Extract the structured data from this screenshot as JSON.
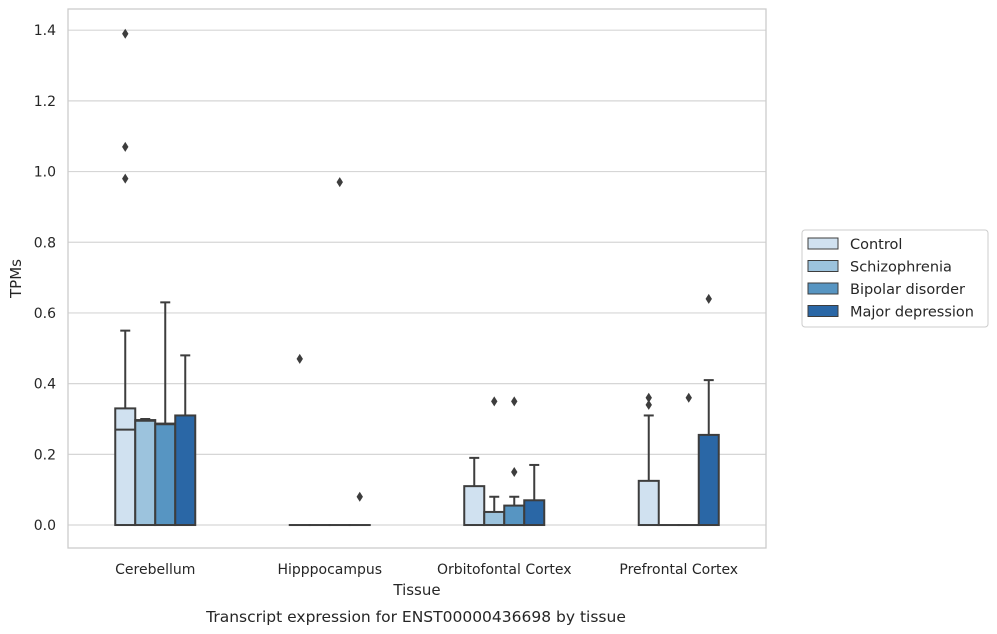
{
  "caption": "Transcript expression for ENST00000436698 by tissue",
  "chart_data": {
    "type": "box",
    "xlabel": "Tissue",
    "ylabel": "TPMs",
    "ylim": [
      -0.065,
      1.46
    ],
    "yticks": [
      0.0,
      0.2,
      0.4,
      0.6,
      0.8,
      1.0,
      1.2,
      1.4
    ],
    "ytick_labels": [
      "0.0",
      "0.2",
      "0.4",
      "0.6",
      "0.8",
      "1.0",
      "1.2",
      "1.4"
    ],
    "grid": "horizontal",
    "legend_position": "right",
    "categories": [
      "Cerebellum",
      "Hipppocampus",
      "Orbitofontal Cortex",
      "Prefrontal Cortex"
    ],
    "series": [
      {
        "name": "Control",
        "color": "#d0e1f0",
        "boxes": [
          {
            "q1": 0.0,
            "median": 0.27,
            "q3": 0.33,
            "whislo": 0.0,
            "whishi": 0.55,
            "fliers": [
              0.98,
              1.07,
              1.39
            ]
          },
          {
            "q1": 0.0,
            "median": 0.0,
            "q3": 0.0,
            "whislo": 0.0,
            "whishi": 0.0,
            "fliers": [
              0.47
            ]
          },
          {
            "q1": 0.0,
            "median": 0.0,
            "q3": 0.11,
            "whislo": 0.0,
            "whishi": 0.19,
            "fliers": []
          },
          {
            "q1": 0.0,
            "median": 0.0,
            "q3": 0.125,
            "whislo": 0.0,
            "whishi": 0.31,
            "fliers": [
              0.34,
              0.36
            ]
          }
        ]
      },
      {
        "name": "Schizophrenia",
        "color": "#9cc3dd",
        "boxes": [
          {
            "q1": 0.0,
            "median": 0.295,
            "q3": 0.297,
            "whislo": 0.0,
            "whishi": 0.3,
            "fliers": []
          },
          {
            "q1": 0.0,
            "median": 0.0,
            "q3": 0.0,
            "whislo": 0.0,
            "whishi": 0.0,
            "fliers": []
          },
          {
            "q1": 0.0,
            "median": 0.0,
            "q3": 0.037,
            "whislo": 0.0,
            "whishi": 0.08,
            "fliers": [
              0.35
            ]
          },
          {
            "q1": 0.0,
            "median": 0.0,
            "q3": 0.0,
            "whislo": 0.0,
            "whishi": 0.0,
            "fliers": []
          }
        ]
      },
      {
        "name": "Bipolar disorder",
        "color": "#5795c2",
        "boxes": [
          {
            "q1": 0.0,
            "median": 0.285,
            "q3": 0.287,
            "whislo": 0.0,
            "whishi": 0.63,
            "fliers": []
          },
          {
            "q1": 0.0,
            "median": 0.0,
            "q3": 0.0,
            "whislo": 0.0,
            "whishi": 0.0,
            "fliers": [
              0.97
            ]
          },
          {
            "q1": 0.0,
            "median": 0.0,
            "q3": 0.055,
            "whislo": 0.0,
            "whishi": 0.08,
            "fliers": [
              0.15,
              0.35
            ]
          },
          {
            "q1": 0.0,
            "median": 0.0,
            "q3": 0.0,
            "whislo": 0.0,
            "whishi": 0.0,
            "fliers": [
              0.36
            ]
          }
        ]
      },
      {
        "name": "Major depression",
        "color": "#2a67a6",
        "boxes": [
          {
            "q1": 0.0,
            "median": 0.0,
            "q3": 0.31,
            "whislo": 0.0,
            "whishi": 0.48,
            "fliers": []
          },
          {
            "q1": 0.0,
            "median": 0.0,
            "q3": 0.0,
            "whislo": 0.0,
            "whishi": 0.0,
            "fliers": [
              0.08
            ]
          },
          {
            "q1": 0.0,
            "median": 0.0,
            "q3": 0.07,
            "whislo": 0.0,
            "whishi": 0.17,
            "fliers": []
          },
          {
            "q1": 0.0,
            "median": 0.0,
            "q3": 0.255,
            "whislo": 0.0,
            "whishi": 0.41,
            "fliers": [
              0.64
            ]
          }
        ]
      }
    ]
  }
}
